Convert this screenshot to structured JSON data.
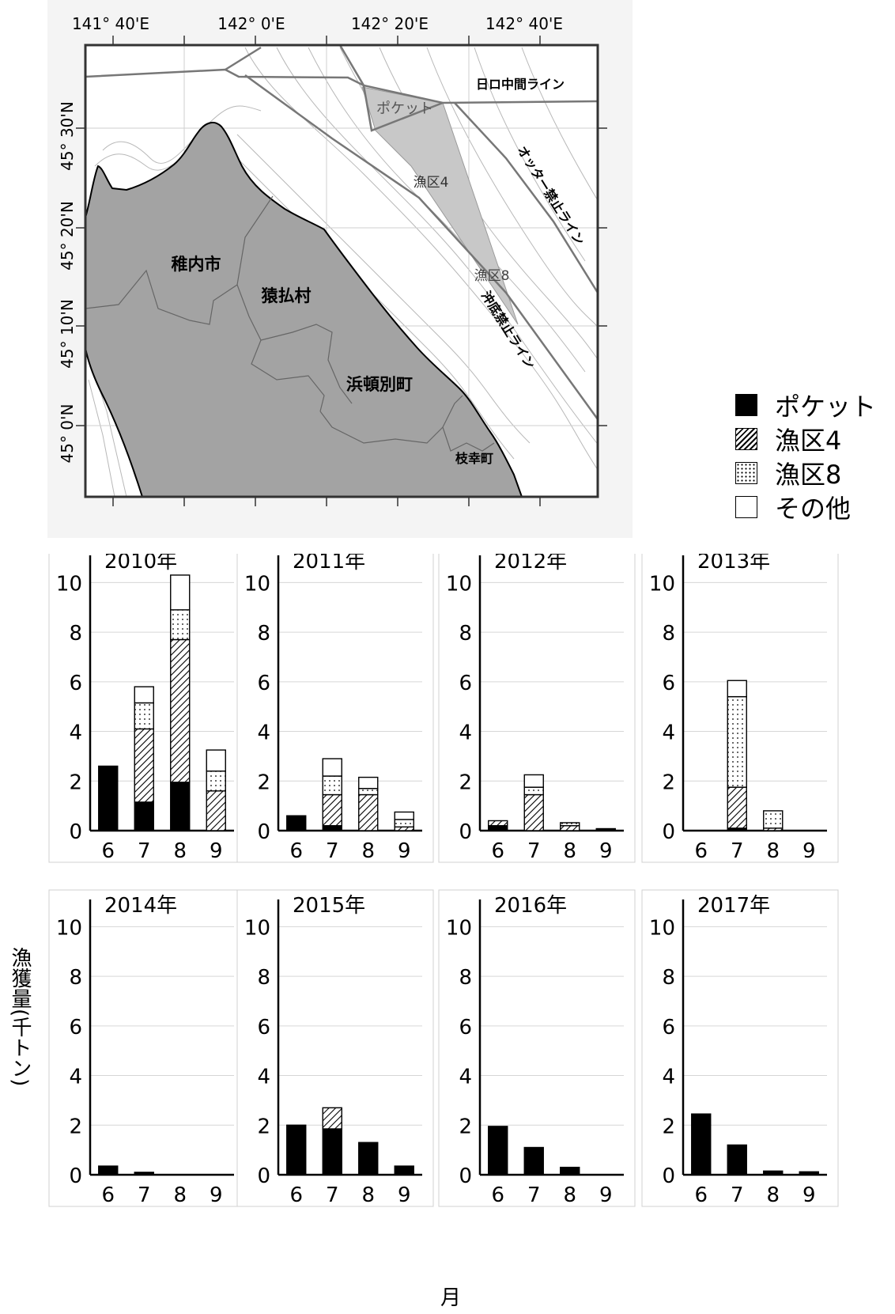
{
  "map": {
    "lon_labels": [
      "141° 40'E",
      "142° 0'E",
      "142° 20'E",
      "142° 40'E"
    ],
    "lat_labels": [
      "45° 30'N",
      "45° 20'N",
      "45° 10'N",
      "45° 0'N"
    ],
    "places": {
      "wakkanai": "稚内市",
      "sarufutsu": "猿払村",
      "hamatonbetsu": "浜頓別町",
      "esashi": "枝幸町"
    },
    "zones": {
      "pocket": "ポケット",
      "zone4": "漁区4",
      "zone8": "漁区8"
    },
    "lines": {
      "nichiro": "日ロ中間ライン",
      "otter": "オッター禁止ライン",
      "okisoko": "沖底禁止ライン"
    }
  },
  "legend": [
    {
      "name": "ポケット",
      "pattern": "solid"
    },
    {
      "name": "漁区4",
      "pattern": "hatch"
    },
    {
      "name": "漁区8",
      "pattern": "dots"
    },
    {
      "name": "その他",
      "pattern": "blank"
    }
  ],
  "axis": {
    "ylabel": "漁獲量(千トン)",
    "xlabel": "月"
  },
  "chart_data": [
    {
      "type": "bar",
      "title": "2010年",
      "categories": [
        "6",
        "7",
        "8",
        "9"
      ],
      "ylim": [
        0,
        11
      ],
      "yticks": [
        "0",
        "2",
        "4",
        "6",
        "8",
        "10"
      ],
      "series": [
        {
          "name": "ポケット",
          "values": [
            2.6,
            1.15,
            1.95,
            0
          ]
        },
        {
          "name": "漁区4",
          "values": [
            0,
            2.95,
            5.75,
            1.6
          ]
        },
        {
          "name": "漁区8",
          "values": [
            0,
            1.05,
            1.2,
            0.8
          ]
        },
        {
          "name": "その他",
          "values": [
            0,
            0.65,
            1.4,
            0.85
          ]
        }
      ]
    },
    {
      "type": "bar",
      "title": "2011年",
      "categories": [
        "6",
        "7",
        "8",
        "9"
      ],
      "ylim": [
        0,
        11
      ],
      "yticks": [
        "0",
        "2",
        "4",
        "6",
        "8",
        "10"
      ],
      "series": [
        {
          "name": "ポケット",
          "values": [
            0.6,
            0.2,
            0,
            0
          ]
        },
        {
          "name": "漁区4",
          "values": [
            0,
            1.25,
            1.45,
            0.15
          ]
        },
        {
          "name": "漁区8",
          "values": [
            0,
            0.75,
            0.25,
            0.3
          ]
        },
        {
          "name": "その他",
          "values": [
            0,
            0.7,
            0.45,
            0.3
          ]
        }
      ]
    },
    {
      "type": "bar",
      "title": "2012年",
      "categories": [
        "6",
        "7",
        "8",
        "9"
      ],
      "ylim": [
        0,
        11
      ],
      "yticks": [
        "0",
        "2",
        "4",
        "6",
        "8",
        "10"
      ],
      "series": [
        {
          "name": "ポケット",
          "values": [
            0.2,
            0,
            0,
            0.08
          ]
        },
        {
          "name": "漁区4",
          "values": [
            0.2,
            1.45,
            0.2,
            0
          ]
        },
        {
          "name": "漁区8",
          "values": [
            0,
            0.3,
            0.12,
            0
          ]
        },
        {
          "name": "その他",
          "values": [
            0,
            0.5,
            0,
            0
          ]
        }
      ]
    },
    {
      "type": "bar",
      "title": "2013年",
      "categories": [
        "6",
        "7",
        "8",
        "9"
      ],
      "ylim": [
        0,
        11
      ],
      "yticks": [
        "0",
        "2",
        "4",
        "6",
        "8",
        "10"
      ],
      "series": [
        {
          "name": "ポケット",
          "values": [
            0,
            0.1,
            0,
            0
          ]
        },
        {
          "name": "漁区4",
          "values": [
            0,
            1.65,
            0.1,
            0
          ]
        },
        {
          "name": "漁区8",
          "values": [
            0,
            3.65,
            0.7,
            0
          ]
        },
        {
          "name": "その他",
          "values": [
            0,
            0.65,
            0,
            0
          ]
        }
      ]
    },
    {
      "type": "bar",
      "title": "2014年",
      "categories": [
        "6",
        "7",
        "8",
        "9"
      ],
      "ylim": [
        0,
        11
      ],
      "yticks": [
        "0",
        "2",
        "4",
        "6",
        "8",
        "10"
      ],
      "series": [
        {
          "name": "ポケット",
          "values": [
            0.35,
            0.1,
            0,
            0
          ]
        },
        {
          "name": "漁区4",
          "values": [
            0,
            0,
            0,
            0
          ]
        },
        {
          "name": "漁区8",
          "values": [
            0,
            0,
            0,
            0
          ]
        },
        {
          "name": "その他",
          "values": [
            0,
            0,
            0,
            0
          ]
        }
      ]
    },
    {
      "type": "bar",
      "title": "2015年",
      "categories": [
        "6",
        "7",
        "8",
        "9"
      ],
      "ylim": [
        0,
        11
      ],
      "yticks": [
        "0",
        "2",
        "4",
        "6",
        "8",
        "10"
      ],
      "series": [
        {
          "name": "ポケット",
          "values": [
            2.0,
            1.85,
            1.3,
            0.35
          ]
        },
        {
          "name": "漁区4",
          "values": [
            0,
            0.85,
            0,
            0
          ]
        },
        {
          "name": "漁区8",
          "values": [
            0,
            0,
            0,
            0
          ]
        },
        {
          "name": "その他",
          "values": [
            0,
            0,
            0,
            0
          ]
        }
      ]
    },
    {
      "type": "bar",
      "title": "2016年",
      "categories": [
        "6",
        "7",
        "8",
        "9"
      ],
      "ylim": [
        0,
        11
      ],
      "yticks": [
        "0",
        "2",
        "4",
        "6",
        "8",
        "10"
      ],
      "series": [
        {
          "name": "ポケット",
          "values": [
            1.95,
            1.1,
            0.3,
            0
          ]
        },
        {
          "name": "漁区4",
          "values": [
            0,
            0,
            0,
            0
          ]
        },
        {
          "name": "漁区8",
          "values": [
            0,
            0,
            0,
            0
          ]
        },
        {
          "name": "その他",
          "values": [
            0,
            0,
            0,
            0
          ]
        }
      ]
    },
    {
      "type": "bar",
      "title": "2017年",
      "categories": [
        "6",
        "7",
        "8",
        "9"
      ],
      "ylim": [
        0,
        11
      ],
      "yticks": [
        "0",
        "2",
        "4",
        "6",
        "8",
        "10"
      ],
      "series": [
        {
          "name": "ポケット",
          "values": [
            2.45,
            1.2,
            0.15,
            0.12
          ]
        },
        {
          "name": "漁区4",
          "values": [
            0,
            0,
            0,
            0
          ]
        },
        {
          "name": "漁区8",
          "values": [
            0,
            0,
            0,
            0
          ]
        },
        {
          "name": "その他",
          "values": [
            0,
            0,
            0,
            0
          ]
        }
      ]
    }
  ]
}
